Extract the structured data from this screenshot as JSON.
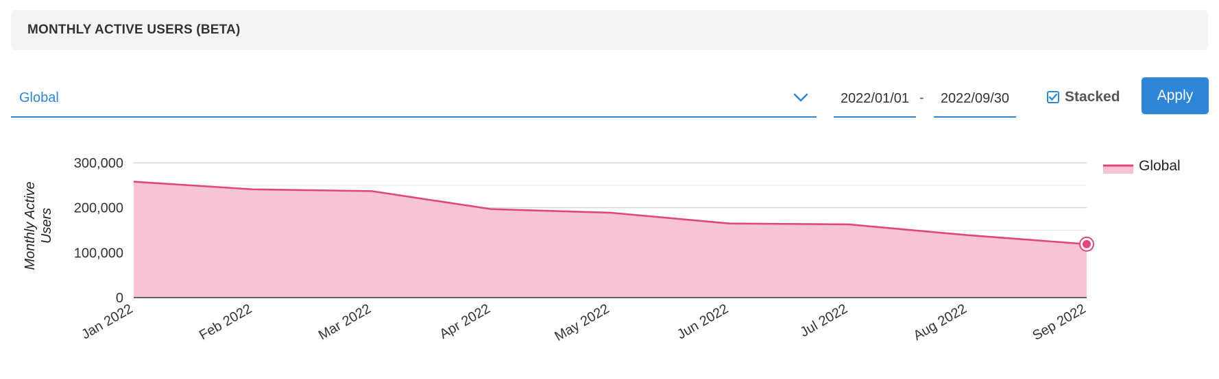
{
  "header": {
    "title": "MONTHLY ACTIVE USERS (BETA)"
  },
  "filters": {
    "region": {
      "selected": "Global",
      "icon": "chevron-down-icon"
    },
    "start_date": "2022/01/01",
    "date_separator": "-",
    "end_date": "2022/09/30",
    "stacked": {
      "label": "Stacked",
      "checked": true
    },
    "apply_label": "Apply"
  },
  "colors": {
    "accent": "#2f86d6",
    "series_line": "#e0457b",
    "series_fill": "#f6c4d4"
  },
  "chart_data": {
    "type": "area",
    "categories": [
      "Jan 2022",
      "Feb 2022",
      "Mar 2022",
      "Apr 2022",
      "May 2022",
      "Jun 2022",
      "Jul 2022",
      "Aug 2022",
      "Sep 2022"
    ],
    "series": [
      {
        "name": "Global",
        "values": [
          258000,
          241000,
          237000,
          197000,
          189000,
          165000,
          163000,
          139000,
          119000
        ]
      }
    ],
    "ylabel": "Monthly Active Users",
    "ylim": [
      0,
      300000
    ],
    "yticks": [
      "0",
      "100,000",
      "200,000",
      "300,000"
    ],
    "grid": true,
    "stacked": true,
    "legend": "top-right",
    "highlighted_point": "Sep 2022"
  }
}
